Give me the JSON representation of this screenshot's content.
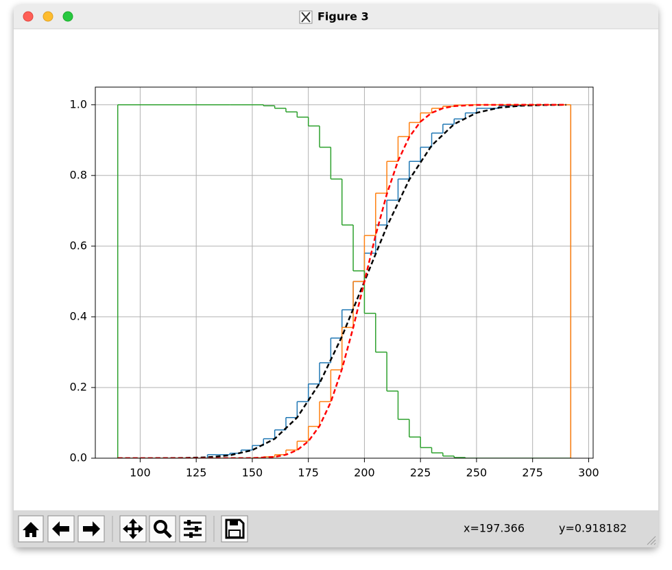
{
  "window": {
    "title": "Figure 3"
  },
  "status": {
    "x": "x=197.366",
    "y": "y=0.918182"
  },
  "chart_data": {
    "type": "histogram",
    "grid": true,
    "xlim": [
      80,
      302
    ],
    "ylim": [
      0,
      1.05
    ],
    "xticks": [
      100,
      125,
      150,
      175,
      200,
      225,
      250,
      275,
      300
    ],
    "yticks": [
      {
        "value": 0,
        "label": "0.0"
      },
      {
        "value": 0.2,
        "label": "0.2"
      },
      {
        "value": 0.4,
        "label": "0.4"
      },
      {
        "value": 0.6,
        "label": "0.6"
      },
      {
        "value": 0.8,
        "label": "0.8"
      },
      {
        "value": 1,
        "label": "1.0"
      }
    ],
    "series": [
      {
        "color": "#1f77b4",
        "bins": [
          90,
          130,
          140,
          145,
          150,
          155,
          160,
          165,
          170,
          175,
          180,
          185,
          190,
          195,
          200,
          205,
          210,
          215,
          220,
          225,
          230,
          235,
          240,
          245,
          250,
          260,
          270,
          292
        ],
        "values": [
          0,
          0.01,
          0.014,
          0.023,
          0.036,
          0.055,
          0.08,
          0.115,
          0.16,
          0.21,
          0.27,
          0.34,
          0.42,
          0.5,
          0.58,
          0.66,
          0.73,
          0.79,
          0.84,
          0.88,
          0.92,
          0.945,
          0.96,
          0.977,
          0.99,
          0.997,
          1
        ]
      },
      {
        "color": "#ff7f0e",
        "bins": [
          90,
          130,
          140,
          145,
          150,
          155,
          160,
          165,
          170,
          175,
          180,
          185,
          190,
          195,
          200,
          205,
          210,
          215,
          220,
          225,
          230,
          235,
          240,
          245,
          250,
          260,
          270,
          292
        ],
        "values": [
          0,
          0,
          0,
          0,
          0.001,
          0.004,
          0.01,
          0.023,
          0.048,
          0.09,
          0.16,
          0.25,
          0.37,
          0.5,
          0.63,
          0.75,
          0.84,
          0.91,
          0.95,
          0.977,
          0.99,
          0.996,
          0.999,
          1,
          1,
          1,
          1
        ]
      },
      {
        "color": "#2ca02c",
        "bins": [
          90,
          130,
          140,
          145,
          150,
          155,
          160,
          165,
          170,
          175,
          180,
          185,
          190,
          195,
          200,
          205,
          210,
          215,
          220,
          225,
          230,
          235,
          240,
          245,
          250,
          260,
          270,
          292
        ],
        "values": [
          1,
          1,
          1,
          1,
          1,
          0.997,
          0.99,
          0.98,
          0.965,
          0.94,
          0.88,
          0.79,
          0.66,
          0.53,
          0.41,
          0.3,
          0.19,
          0.11,
          0.06,
          0.03,
          0.015,
          0.006,
          0.002,
          0,
          0,
          0,
          0
        ]
      }
    ],
    "lines": [
      {
        "color": "#000000",
        "linestyle": "dashed",
        "x": [
          90,
          100,
          110,
          120,
          130,
          140,
          150,
          160,
          170,
          180,
          190,
          200,
          210,
          220,
          230,
          240,
          250,
          260,
          270,
          280,
          290
        ],
        "values": [
          0,
          0,
          0.0002,
          0.0007,
          0.0026,
          0.0082,
          0.0228,
          0.0548,
          0.1151,
          0.2119,
          0.3446,
          0.5,
          0.6554,
          0.7881,
          0.8849,
          0.9452,
          0.9772,
          0.9918,
          0.9974,
          0.9993,
          0.9998
        ]
      },
      {
        "color": "#ff0000",
        "linestyle": "dashed",
        "x": [
          90,
          110,
          130,
          150,
          160,
          165,
          170,
          175,
          180,
          185,
          190,
          195,
          200,
          205,
          210,
          215,
          220,
          225,
          230,
          235,
          240,
          250,
          270,
          290
        ],
        "values": [
          0,
          0,
          0,
          0.0004,
          0.0038,
          0.0098,
          0.0228,
          0.0478,
          0.0912,
          0.1587,
          0.2525,
          0.3694,
          0.5,
          0.6306,
          0.7475,
          0.8413,
          0.9088,
          0.9522,
          0.9772,
          0.9902,
          0.9962,
          0.9996,
          1,
          1
        ]
      }
    ]
  }
}
